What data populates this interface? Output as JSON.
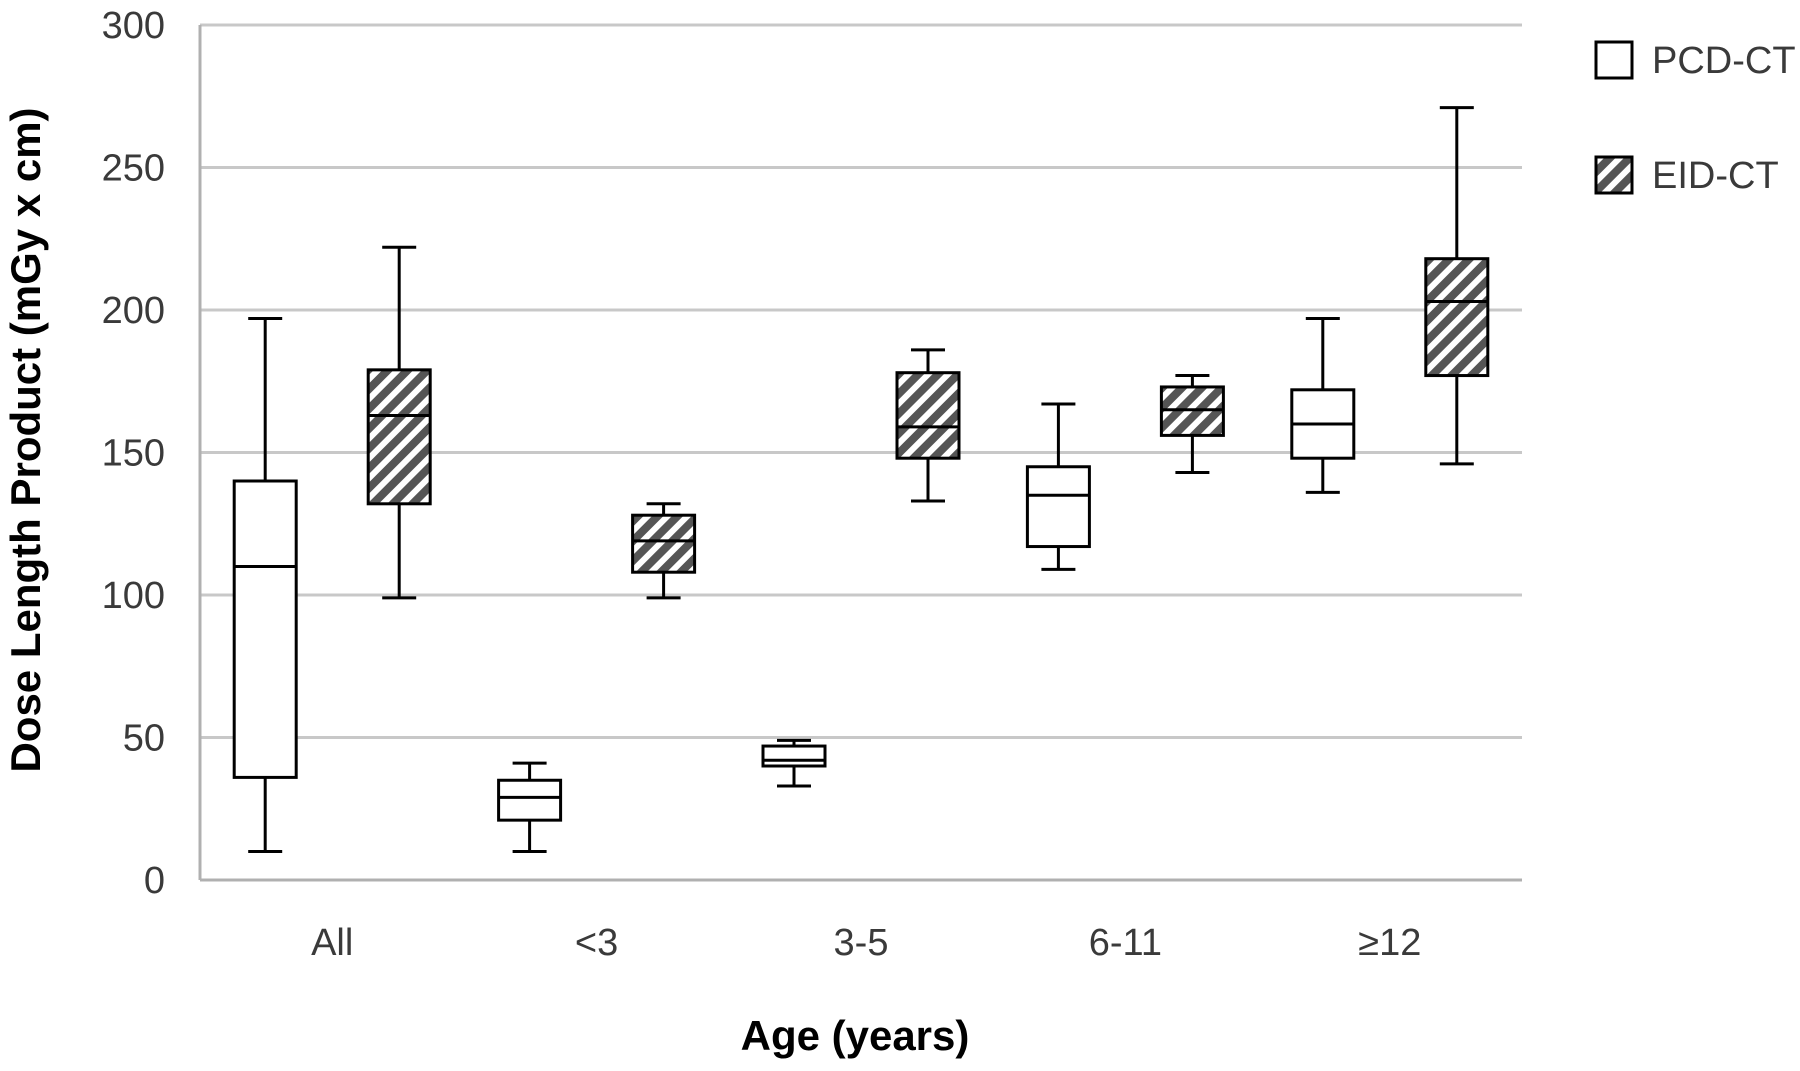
{
  "chart_data": {
    "type": "boxplot",
    "xlabel": "Age (years)",
    "ylabel": "Dose Length Product (mGy x cm)",
    "ylim": [
      0,
      300
    ],
    "yticks": [
      0,
      50,
      100,
      150,
      200,
      250,
      300
    ],
    "categories": [
      "All",
      "<3",
      "3-5",
      "6-11",
      "≥12"
    ],
    "grid": "horizontal",
    "legend_position": "top-right",
    "series": [
      {
        "name": "PCD-CT",
        "fill": "plain",
        "boxes": [
          {
            "min": 10,
            "q1": 36,
            "median": 110,
            "q3": 140,
            "max": 197
          },
          {
            "min": 10,
            "q1": 21,
            "median": 29,
            "q3": 35,
            "max": 41
          },
          {
            "min": 33,
            "q1": 40,
            "median": 42,
            "q3": 47,
            "max": 49
          },
          {
            "min": 109,
            "q1": 117,
            "median": 135,
            "q3": 145,
            "max": 167
          },
          {
            "min": 136,
            "q1": 148,
            "median": 160,
            "q3": 172,
            "max": 197
          }
        ]
      },
      {
        "name": "EID-CT",
        "fill": "hatched",
        "boxes": [
          {
            "min": 99,
            "q1": 132,
            "median": 163,
            "q3": 179,
            "max": 222
          },
          {
            "min": 99,
            "q1": 108,
            "median": 119,
            "q3": 128,
            "max": 132
          },
          {
            "min": 133,
            "q1": 148,
            "median": 159,
            "q3": 178,
            "max": 186
          },
          {
            "min": 143,
            "q1": 156,
            "median": 165,
            "q3": 173,
            "max": 177
          },
          {
            "min": 146,
            "q1": 177,
            "median": 203,
            "q3": 218,
            "max": 271
          }
        ]
      }
    ],
    "colors": {
      "grid": "#c8c8c8",
      "axis": "#b0b0b0",
      "box_stroke": "#000000",
      "hatch": "#555555",
      "box_fill": "#ffffff"
    }
  }
}
